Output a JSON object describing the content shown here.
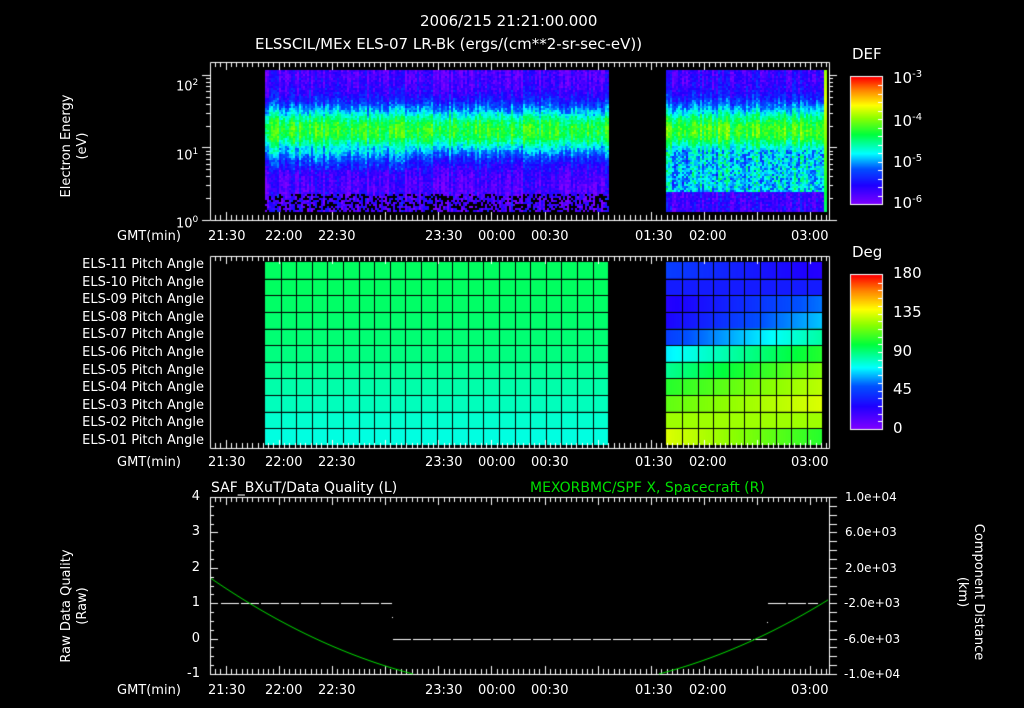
{
  "header": {
    "timestamp": "2006/215 21:21:00.000",
    "title": "ELSSCIL/MEx ELS-07 LR-Bk  (ergs/(cm**2-sr-sec-eV))"
  },
  "time_axis": {
    "label": "GMT(min)",
    "top_bottom_ticks": [
      "21:30",
      "22:00",
      "22:30",
      "23:30",
      "00:00",
      "00:30",
      "01:30",
      "02:00",
      "03:00"
    ],
    "bottom_ticks": [
      "21:30",
      "22:00",
      "22:30",
      "23:30",
      "00:00",
      "00:30",
      "01:30",
      "02:00",
      "03:00"
    ]
  },
  "panel1": {
    "ylabel_line1": "Electron Energy",
    "ylabel_line2": "(eV)",
    "yticks": [
      {
        "base": "10",
        "exp": "2"
      },
      {
        "base": "10",
        "exp": "1"
      },
      {
        "base": "10",
        "exp": "0"
      }
    ],
    "colorbar": {
      "label": "DEF",
      "ticks": [
        {
          "base": "10",
          "exp": "-3"
        },
        {
          "base": "10",
          "exp": "-4"
        },
        {
          "base": "10",
          "exp": "-5"
        },
        {
          "base": "10",
          "exp": "-6"
        }
      ]
    }
  },
  "panel2": {
    "rows": [
      "ELS-11 Pitch Angle",
      "ELS-10 Pitch Angle",
      "ELS-09 Pitch Angle",
      "ELS-08 Pitch Angle",
      "ELS-07 Pitch Angle",
      "ELS-06 Pitch Angle",
      "ELS-05 Pitch Angle",
      "ELS-04 Pitch Angle",
      "ELS-03 Pitch Angle",
      "ELS-02 Pitch Angle",
      "ELS-01 Pitch Angle"
    ],
    "colorbar": {
      "label": "Deg",
      "ticks": [
        "180",
        "135",
        "90",
        "45",
        "0"
      ]
    }
  },
  "panel3": {
    "title_left": "SAF_BXuT/Data Quality (L)",
    "title_right": "MEXORBMC/SPF X, Spacecraft (R)",
    "ylabel_left_line1": "Raw Data Quality",
    "ylabel_left_line2": "(Raw)",
    "ylabel_right_line1": "Component Distance",
    "ylabel_right_line2": "(km)",
    "yticks_left": [
      "4",
      "3",
      "2",
      "1",
      "0",
      "-1"
    ],
    "yticks_right": [
      "1.0e+04",
      "6.0e+03",
      "2.0e+03",
      "-2.0e+03",
      "-6.0e+03",
      "-1.0e+04"
    ],
    "accent_color": "#00e000"
  },
  "chart_data": [
    {
      "type": "heatmap",
      "title": "ELSSCIL/MEx ELS-07 LR-Bk (ergs/(cm**2-sr-sec-eV))",
      "xlabel": "GMT(min)",
      "ylabel": "Electron Energy (eV)",
      "yscale": "log",
      "ylim": [
        1,
        150
      ],
      "x_range": [
        "21:21",
        "03:06"
      ],
      "data_segments": [
        [
          "21:52",
          "01:11"
        ],
        [
          "01:40",
          "03:06"
        ]
      ],
      "colorbar": {
        "label": "DEF",
        "scale": "log",
        "range": [
          1e-06,
          0.001
        ]
      },
      "description": "Peak flux (~1e-4, green) near 10-40 eV; weaker (~1e-6, purple) above 80 eV and below 3 eV"
    },
    {
      "type": "heatmap",
      "title": "ELS Pitch Angles",
      "xlabel": "GMT(min)",
      "rows": [
        "ELS-11",
        "ELS-10",
        "ELS-09",
        "ELS-08",
        "ELS-07",
        "ELS-06",
        "ELS-05",
        "ELS-04",
        "ELS-03",
        "ELS-02",
        "ELS-01"
      ],
      "colorbar": {
        "label": "Deg",
        "range": [
          0,
          180
        ]
      },
      "segment1_values_deg": [
        100,
        100,
        99,
        98,
        97,
        95,
        92,
        88,
        85,
        82,
        79
      ],
      "segment2_first_column_deg": [
        45,
        35,
        25,
        28,
        45,
        70,
        87,
        105,
        115,
        125,
        135
      ],
      "segment2_last_column_deg": [
        25,
        35,
        55,
        65,
        85,
        105,
        120,
        130,
        135,
        125,
        105
      ]
    },
    {
      "type": "line",
      "title_left": "SAF_BXuT/Data Quality (L)",
      "title_right": "MEXORBMC/SPF X, Spacecraft (R)",
      "xlabel": "GMT(min)",
      "ylabel_left": "Raw Data Quality (Raw)",
      "ylabel_right": "Component Distance (km)",
      "ylim_left": [
        -1,
        4
      ],
      "ylim_right": [
        -10000,
        10000
      ],
      "series": [
        {
          "name": "Data Quality",
          "axis": "left",
          "color": "#ffffff",
          "style": "dashed",
          "points": [
            [
              "21:24",
              1
            ],
            [
              "22:57",
              1
            ],
            [
              "22:58",
              0
            ],
            [
              "02:37",
              0
            ],
            [
              "02:38",
              1
            ],
            [
              "03:03",
              1
            ]
          ]
        },
        {
          "name": "SPF X",
          "axis": "right",
          "color": "#00e000",
          "points": [
            [
              "21:21",
              1000
            ],
            [
              "21:45",
              -2000
            ],
            [
              "22:30",
              -6500
            ],
            [
              "23:00",
              -9600
            ],
            [
              "01:44",
              -9800
            ],
            [
              "02:20",
              -6000
            ],
            [
              "02:50",
              -2000
            ],
            [
              "03:06",
              1000
            ]
          ]
        }
      ]
    }
  ]
}
